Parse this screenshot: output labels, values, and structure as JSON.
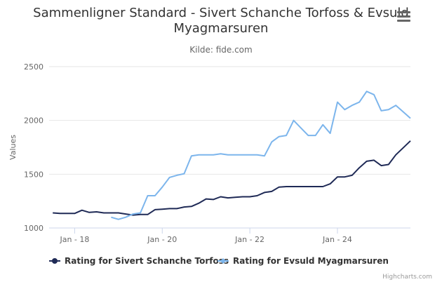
{
  "title": "Sammenligner Standard - Sivert Schanche Torfoss & Evsuld Myagmarsuren",
  "subtitle": "Kilde: fide.com",
  "credit": "Highcharts.com",
  "menu_icon": "hamburger-menu-icon",
  "colors": {
    "series1": "#1f2a56",
    "series2": "#7cb5ec",
    "grid": "#e6e6e6",
    "axis": "#ccd6eb",
    "text": "#666666"
  },
  "chart_data": {
    "type": "line",
    "title": "Sammenligner Standard - Sivert Schanche Torfoss & Evsuld Myagmarsuren",
    "subtitle": "Kilde: fide.com",
    "ylabel": "Values",
    "xlabel": "",
    "ylim": [
      1000,
      2500
    ],
    "yticks": [
      1000,
      1500,
      2000,
      2500
    ],
    "xlim": [
      "2017-06",
      "2025-09"
    ],
    "xticks": [
      {
        "date": "2018-01",
        "label": "Jan - 18"
      },
      {
        "date": "2020-01",
        "label": "Jan - 20"
      },
      {
        "date": "2022-01",
        "label": "Jan - 22"
      },
      {
        "date": "2024-01",
        "label": "Jan - 24"
      }
    ],
    "grid": true,
    "legend_position": "bottom-center",
    "series": [
      {
        "name": "Rating for Sivert Schanche Torfoss",
        "color": "#1f2a56",
        "points": [
          [
            "2017-07",
            1140
          ],
          [
            "2017-09",
            1135
          ],
          [
            "2017-11",
            1135
          ],
          [
            "2018-01",
            1135
          ],
          [
            "2018-03",
            1165
          ],
          [
            "2018-05",
            1145
          ],
          [
            "2018-07",
            1150
          ],
          [
            "2018-09",
            1140
          ],
          [
            "2018-11",
            1140
          ],
          [
            "2019-01",
            1140
          ],
          [
            "2019-03",
            1130
          ],
          [
            "2019-05",
            1120
          ],
          [
            "2019-07",
            1125
          ],
          [
            "2019-09",
            1125
          ],
          [
            "2019-11",
            1170
          ],
          [
            "2020-01",
            1175
          ],
          [
            "2020-03",
            1180
          ],
          [
            "2020-05",
            1180
          ],
          [
            "2020-07",
            1195
          ],
          [
            "2020-09",
            1200
          ],
          [
            "2020-11",
            1230
          ],
          [
            "2021-01",
            1270
          ],
          [
            "2021-03",
            1265
          ],
          [
            "2021-05",
            1290
          ],
          [
            "2021-07",
            1280
          ],
          [
            "2021-09",
            1285
          ],
          [
            "2021-11",
            1290
          ],
          [
            "2022-01",
            1290
          ],
          [
            "2022-03",
            1300
          ],
          [
            "2022-05",
            1330
          ],
          [
            "2022-07",
            1340
          ],
          [
            "2022-09",
            1380
          ],
          [
            "2022-11",
            1385
          ],
          [
            "2023-01",
            1385
          ],
          [
            "2023-03",
            1385
          ],
          [
            "2023-05",
            1385
          ],
          [
            "2023-07",
            1385
          ],
          [
            "2023-09",
            1385
          ],
          [
            "2023-11",
            1410
          ],
          [
            "2024-01",
            1475
          ],
          [
            "2024-03",
            1475
          ],
          [
            "2024-05",
            1490
          ],
          [
            "2024-07",
            1560
          ],
          [
            "2024-09",
            1620
          ],
          [
            "2024-11",
            1630
          ],
          [
            "2025-01",
            1580
          ],
          [
            "2025-03",
            1590
          ],
          [
            "2025-05",
            1680
          ],
          [
            "2025-07",
            1745
          ],
          [
            "2025-09",
            1810
          ]
        ]
      },
      {
        "name": "Rating for Evsuld Myagmarsuren",
        "color": "#7cb5ec",
        "points": [
          [
            "2018-11",
            1100
          ],
          [
            "2019-01",
            1080
          ],
          [
            "2019-03",
            1100
          ],
          [
            "2019-05",
            1130
          ],
          [
            "2019-07",
            1140
          ],
          [
            "2019-09",
            1300
          ],
          [
            "2019-11",
            1300
          ],
          [
            "2020-01",
            1380
          ],
          [
            "2020-03",
            1470
          ],
          [
            "2020-05",
            1490
          ],
          [
            "2020-07",
            1505
          ],
          [
            "2020-09",
            1670
          ],
          [
            "2020-11",
            1680
          ],
          [
            "2021-01",
            1680
          ],
          [
            "2021-03",
            1680
          ],
          [
            "2021-05",
            1690
          ],
          [
            "2021-07",
            1680
          ],
          [
            "2021-09",
            1680
          ],
          [
            "2021-11",
            1680
          ],
          [
            "2022-01",
            1680
          ],
          [
            "2022-03",
            1680
          ],
          [
            "2022-05",
            1670
          ],
          [
            "2022-07",
            1800
          ],
          [
            "2022-09",
            1850
          ],
          [
            "2022-11",
            1860
          ],
          [
            "2023-01",
            2000
          ],
          [
            "2023-03",
            1930
          ],
          [
            "2023-05",
            1860
          ],
          [
            "2023-07",
            1860
          ],
          [
            "2023-09",
            1960
          ],
          [
            "2023-11",
            1880
          ],
          [
            "2024-01",
            2170
          ],
          [
            "2024-03",
            2100
          ],
          [
            "2024-05",
            2140
          ],
          [
            "2024-07",
            2170
          ],
          [
            "2024-09",
            2270
          ],
          [
            "2024-11",
            2240
          ],
          [
            "2025-01",
            2090
          ],
          [
            "2025-03",
            2100
          ],
          [
            "2025-05",
            2140
          ],
          [
            "2025-07",
            2080
          ],
          [
            "2025-09",
            2020
          ]
        ]
      }
    ]
  }
}
